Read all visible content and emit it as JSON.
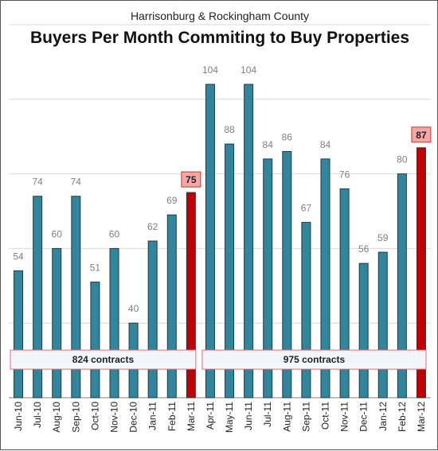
{
  "header": {
    "subtitle": "Harrisonburg & Rockingham County",
    "title": "Buyers Per Month Commiting to Buy Properties"
  },
  "colors": {
    "bar": "#31859c",
    "bar_highlight": "#c00000",
    "bar_outline": "#1f3b47"
  },
  "chart_data": {
    "type": "bar",
    "title": "Buyers Per Month Commiting to Buy Properties",
    "subtitle": "Harrisonburg & Rockingham County",
    "xlabel": "",
    "ylabel": "",
    "ylim": [
      20,
      120
    ],
    "grid": true,
    "categories": [
      "Jun-10",
      "Jul-10",
      "Aug-10",
      "Sep-10",
      "Oct-10",
      "Nov-10",
      "Dec-10",
      "Jan-11",
      "Feb-11",
      "Mar-11",
      "Apr-11",
      "May-11",
      "Jun-11",
      "Jul-11",
      "Aug-11",
      "Sep-11",
      "Oct-11",
      "Nov-11",
      "Dec-11",
      "Jan-12",
      "Feb-12",
      "Mar-12"
    ],
    "values": [
      54,
      74,
      60,
      74,
      51,
      60,
      40,
      62,
      69,
      75,
      104,
      88,
      104,
      84,
      86,
      67,
      84,
      76,
      56,
      59,
      80,
      87
    ],
    "highlighted": [
      "Mar-11",
      "Mar-12"
    ],
    "annotations": [
      {
        "label": "824 contracts",
        "from": "Jun-10",
        "to": "Mar-11"
      },
      {
        "label": "975 contracts",
        "from": "Apr-11",
        "to": "Mar-12"
      }
    ]
  }
}
